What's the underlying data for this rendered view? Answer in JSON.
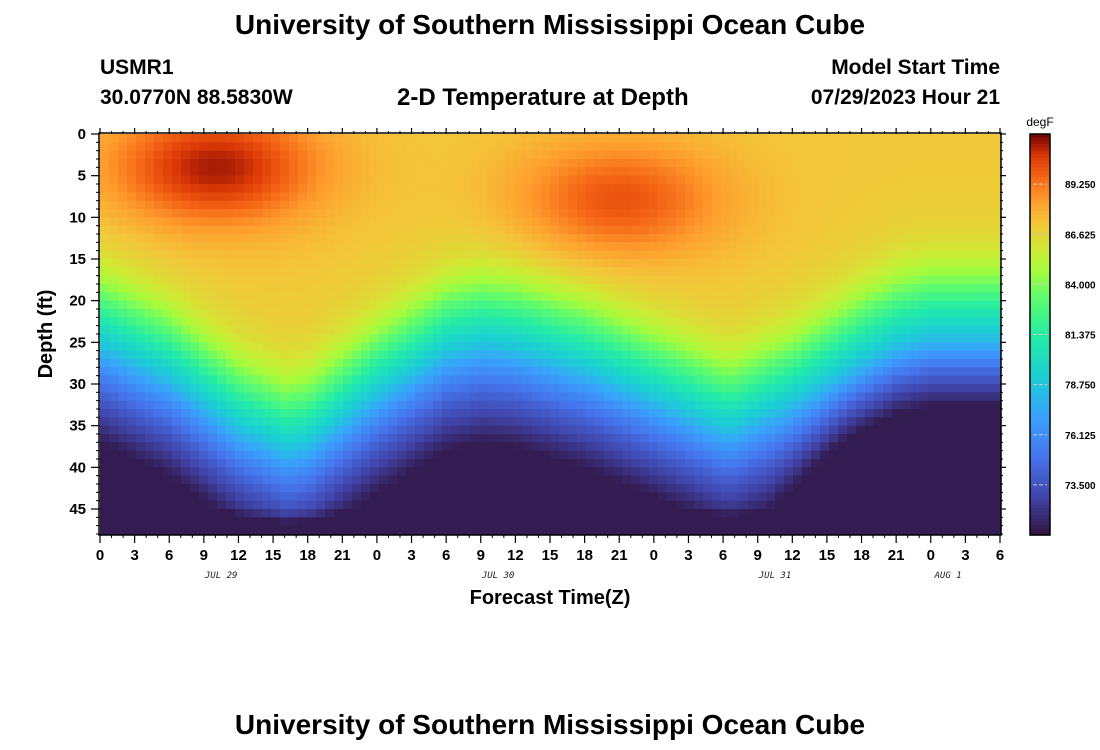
{
  "header": {
    "title": "University of Southern Mississippi Ocean Cube",
    "station_id": "USMR1",
    "station_coords": "30.0770N  88.5830W",
    "plot_title": "2-D Temperature at Depth",
    "model_start_label": "Model Start Time",
    "model_start_value": "07/29/2023 Hour 21"
  },
  "footer": {
    "title": "University of Southern Mississippi Ocean Cube"
  },
  "chart_data": {
    "type": "heatmap",
    "title": "2-D Temperature at Depth",
    "xlabel": "Forecast Time(Z)",
    "ylabel": "Depth (ft)",
    "x_ticks": [
      "0",
      "3",
      "6",
      "9",
      "12",
      "15",
      "18",
      "21",
      "0",
      "3",
      "6",
      "9",
      "12",
      "15",
      "18",
      "21",
      "0",
      "3",
      "6",
      "9",
      "12",
      "15",
      "18",
      "21",
      "0",
      "3",
      "6"
    ],
    "date_labels": [
      {
        "label": "JUL 29",
        "tick_index": 3.5
      },
      {
        "label": "JUL 30",
        "tick_index": 11.5
      },
      {
        "label": "JUL 31",
        "tick_index": 19.5
      },
      {
        "label": "AUG 1",
        "tick_index": 24.5
      }
    ],
    "y_ticks": [
      0,
      5,
      10,
      15,
      20,
      25,
      30,
      35,
      40,
      45
    ],
    "ylim": [
      0,
      48
    ],
    "x_hours_range": [
      0,
      78
    ],
    "colorbar": {
      "unit": "degF",
      "ticks": [
        "89.250",
        "86.625",
        "84.000",
        "81.375",
        "78.750",
        "76.125",
        "73.500"
      ],
      "tick_values": [
        89.25,
        86.625,
        84.0,
        81.375,
        78.75,
        76.125,
        73.5
      ],
      "range": [
        70.875,
        91.875
      ]
    },
    "thermocline": {
      "hours": [
        0,
        6,
        12,
        16,
        18,
        24,
        30,
        33,
        36,
        42,
        48,
        54,
        55,
        60,
        66,
        69,
        72,
        75,
        78
      ],
      "depth_ft": [
        22,
        26,
        32,
        34.5,
        34,
        28,
        23,
        22,
        22.5,
        25,
        28.5,
        32,
        32,
        29,
        24,
        22,
        21,
        21,
        21
      ]
    },
    "surface_warm_cores": [
      {
        "hour": 10,
        "depth_ft": 4,
        "temp_degF": 91.4
      },
      {
        "hour": 45,
        "depth_ft": 8,
        "temp_degF": 90.2
      }
    ],
    "deep_temp_degF": 71.3,
    "deep_cool_zone_start_hour": 58
  }
}
